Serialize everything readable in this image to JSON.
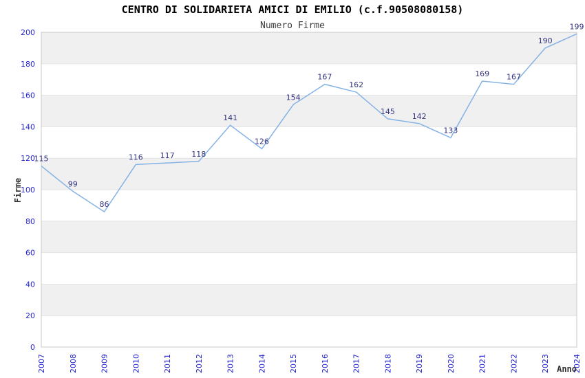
{
  "chart_data": {
    "type": "line",
    "title": "CENTRO DI SOLIDARIETA AMICI DI EMILIO (c.f.90508080158)",
    "subtitle": "Numero Firme",
    "xlabel": "Anno",
    "ylabel": "Firme",
    "categories": [
      "2007",
      "2008",
      "2009",
      "2010",
      "2011",
      "2012",
      "2013",
      "2014",
      "2015",
      "2016",
      "2017",
      "2018",
      "2019",
      "2020",
      "2021",
      "2022",
      "2023",
      "2024"
    ],
    "values": [
      115,
      99,
      86,
      116,
      117,
      118,
      141,
      126,
      154,
      167,
      162,
      145,
      142,
      133,
      169,
      167,
      190,
      199
    ],
    "ylim": [
      0,
      200
    ],
    "ytick_step": 20,
    "grid": "horizontal lines with alternating shaded bands",
    "legend_position": "none",
    "point_labels_visible": true,
    "colors": {
      "line": "#85b2e5",
      "tick_label": "#2424cc",
      "point_label": "#333380",
      "band_fill": "#f0f0f0",
      "grid_line": "#e2e2e2",
      "plot_border": "#c9c9c9",
      "title": "#000000",
      "subtitle": "#3a3a3a",
      "axis_title": "#333333"
    }
  }
}
